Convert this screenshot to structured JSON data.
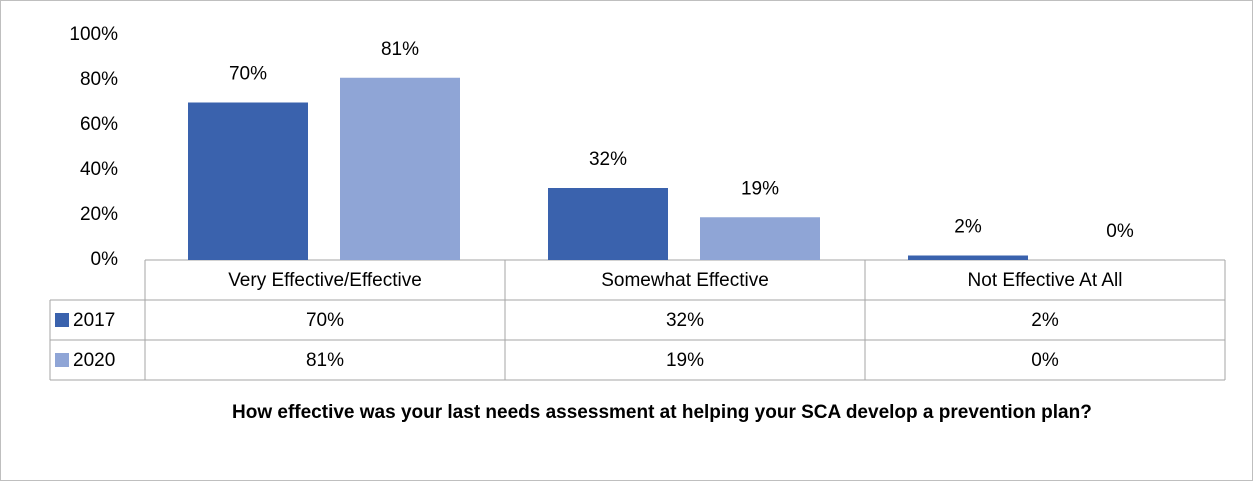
{
  "chart_data": {
    "type": "bar",
    "title": "How effective was your last needs assessment at helping your SCA develop a prevention plan?",
    "categories": [
      "Very Effective/Effective",
      "Somewhat Effective",
      "Not Effective At All"
    ],
    "series": [
      {
        "name": "2017",
        "color": "#3a62ad",
        "values": [
          70,
          32,
          2
        ],
        "value_labels": [
          "70%",
          "32%",
          "2%"
        ]
      },
      {
        "name": "2020",
        "color": "#8fa5d6",
        "values": [
          81,
          19,
          0
        ],
        "value_labels": [
          "81%",
          "19%",
          "0%"
        ]
      }
    ],
    "ylim": [
      0,
      100
    ],
    "yticks": [
      {
        "value": 0,
        "label": "0%"
      },
      {
        "value": 20,
        "label": "20%"
      },
      {
        "value": 40,
        "label": "40%"
      },
      {
        "value": 60,
        "label": "60%"
      },
      {
        "value": 80,
        "label": "80%"
      },
      {
        "value": 100,
        "label": "100%"
      }
    ],
    "grid": false
  }
}
